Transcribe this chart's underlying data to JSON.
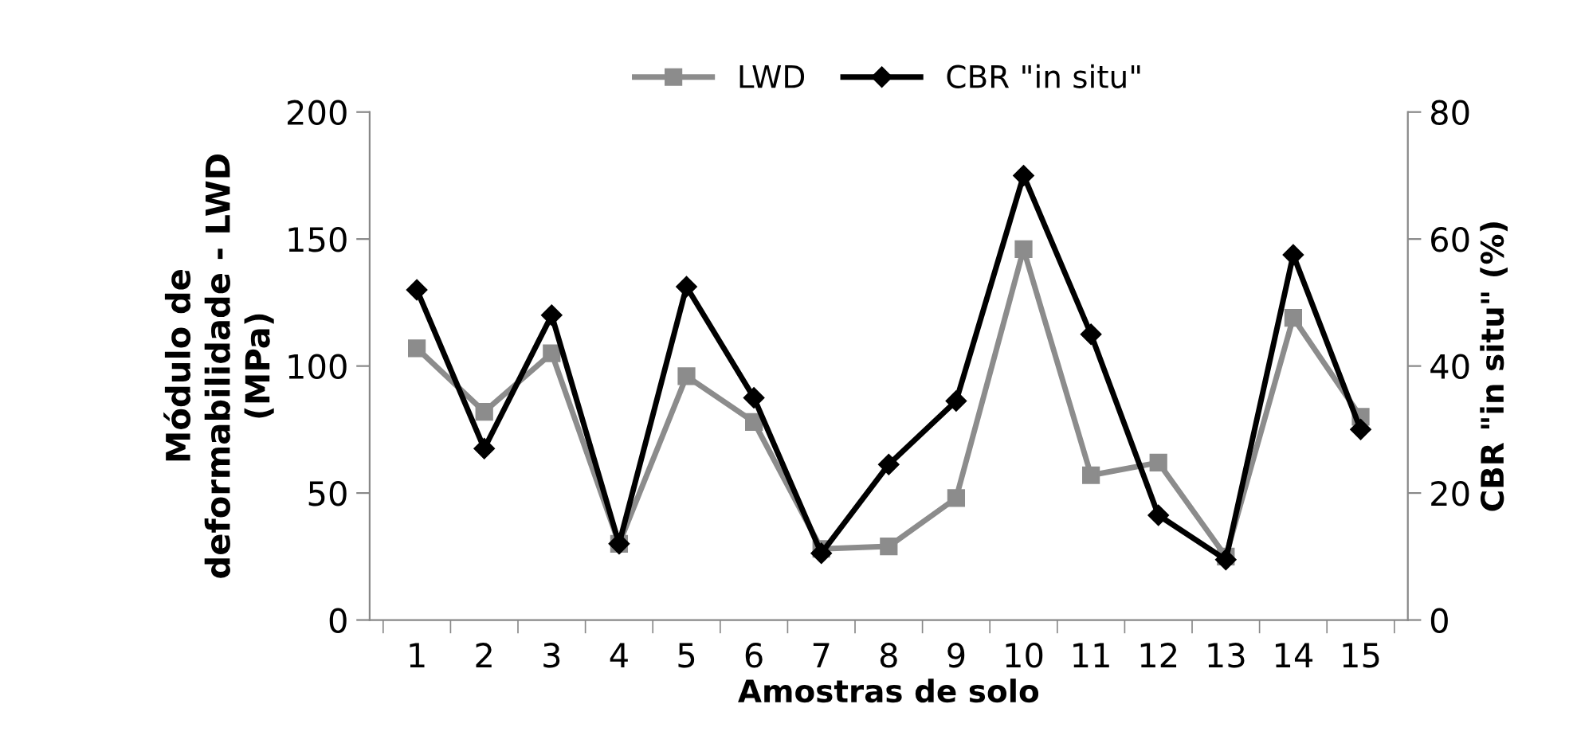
{
  "chart_data": {
    "type": "line",
    "xlabel": "Amostras de solo",
    "ylabel": "Módulo de\ndeformabilidade - LWD\n(MPa)",
    "y2label": "CBR \"in situ\" (%)",
    "categories": [
      "1",
      "2",
      "3",
      "4",
      "5",
      "6",
      "7",
      "8",
      "9",
      "10",
      "11",
      "12",
      "13",
      "14",
      "15"
    ],
    "series": [
      {
        "name": "LWD",
        "color": "#8c8c8c",
        "marker": "square",
        "values": [
          107,
          82,
          105,
          30,
          96,
          78,
          28,
          29,
          48,
          146,
          57,
          62,
          25,
          119,
          80
        ]
      },
      {
        "name": "CBR \"in situ\"",
        "color": "#000000",
        "marker": "diamond",
        "axis": "y2",
        "values": [
          52,
          27,
          48,
          12,
          52.5,
          35,
          10.5,
          24.5,
          34.5,
          70,
          45,
          16.5,
          9.5,
          57.5,
          30
        ]
      }
    ],
    "ylim": [
      0,
      200
    ],
    "yticks": [
      0,
      50,
      100,
      150,
      200
    ],
    "y2lim": [
      0,
      80
    ],
    "y2ticks": [
      0,
      20,
      40,
      60,
      80
    ],
    "grid": false,
    "legend": "top",
    "line_style": "solid"
  }
}
